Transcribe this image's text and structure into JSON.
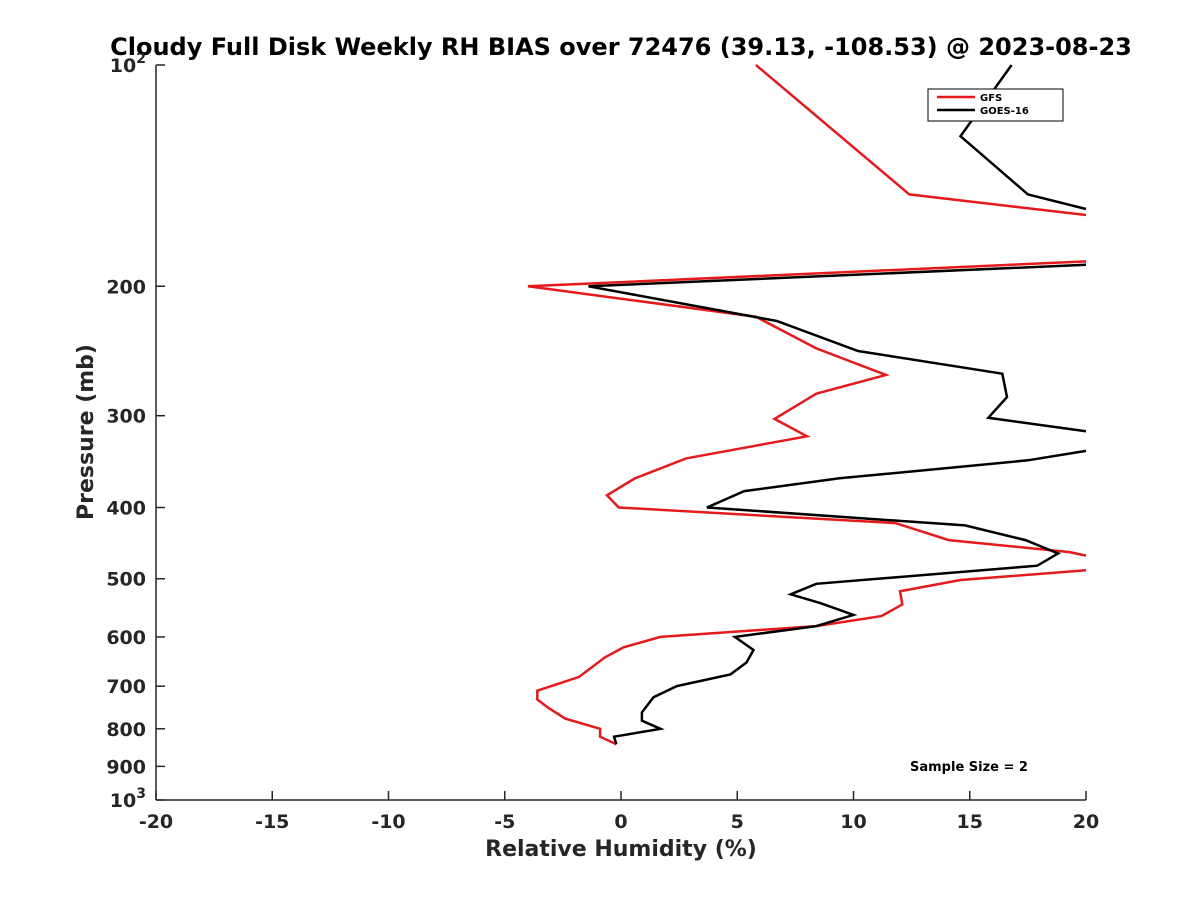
{
  "chart_data": {
    "type": "line",
    "title": "Cloudy Full Disk Weekly RH BIAS over 72476 (39.13, -108.53) @ 2023-08-23",
    "xlabel": "Relative Humidity (%)",
    "ylabel": "Pressure (mb)",
    "xlim": [
      -20,
      20
    ],
    "ylim": [
      100,
      1000
    ],
    "y_scale": "log",
    "y_reversed": true,
    "grid": false,
    "legend_position": "top-right",
    "x_ticks": [
      -20,
      -15,
      -10,
      -5,
      0,
      5,
      10,
      15,
      20
    ],
    "x_tick_labels": [
      "-20",
      "-15",
      "-10",
      "-5",
      "0",
      "5",
      "10",
      "15",
      "20"
    ],
    "y_ticks": [
      100,
      200,
      300,
      400,
      500,
      600,
      700,
      800,
      900,
      1000
    ],
    "y_tick_labels": [
      {
        "base": "10",
        "exp": "2"
      },
      {
        "base": "200",
        "exp": ""
      },
      {
        "base": "300",
        "exp": ""
      },
      {
        "base": "400",
        "exp": ""
      },
      {
        "base": "500",
        "exp": ""
      },
      {
        "base": "600",
        "exp": ""
      },
      {
        "base": "700",
        "exp": ""
      },
      {
        "base": "800",
        "exp": ""
      },
      {
        "base": "900",
        "exp": ""
      },
      {
        "base": "10",
        "exp": "3"
      }
    ],
    "series": [
      {
        "name": "GFS",
        "color": "#e41a1c",
        "points": [
          [
            5.8,
            100
          ],
          [
            12.4,
            150
          ],
          [
            20,
            160
          ],
          [
            null,
            null
          ],
          [
            20,
            185
          ],
          [
            -4.0,
            200
          ],
          [
            5.8,
            220
          ],
          [
            8.4,
            243
          ],
          [
            11.4,
            264
          ],
          [
            8.4,
            280
          ],
          [
            6.6,
            303
          ],
          [
            8.0,
            320
          ],
          [
            2.8,
            343
          ],
          [
            0.6,
            365
          ],
          [
            -0.6,
            385
          ],
          [
            -0.1,
            400
          ],
          [
            11.8,
            420
          ],
          [
            14.1,
            443
          ],
          [
            19.3,
            460
          ],
          [
            20,
            465
          ],
          [
            null,
            null
          ],
          [
            20,
            487
          ],
          [
            14.6,
            502
          ],
          [
            12.0,
            520
          ],
          [
            12.1,
            542
          ],
          [
            11.2,
            562
          ],
          [
            8.4,
            580
          ],
          [
            1.7,
            600
          ],
          [
            0.1,
            620
          ],
          [
            -0.7,
            640
          ],
          [
            -1.8,
            680
          ],
          [
            -3.6,
            710
          ],
          [
            -3.6,
            730
          ],
          [
            -3.1,
            750
          ],
          [
            -2.4,
            775
          ],
          [
            -0.9,
            800
          ],
          [
            -0.9,
            820
          ],
          [
            -0.2,
            840
          ]
        ]
      },
      {
        "name": "GOES-16",
        "color": "#000000",
        "points": [
          [
            16.8,
            100
          ],
          [
            14.6,
            125
          ],
          [
            17.5,
            150
          ],
          [
            20,
            157
          ],
          [
            null,
            null
          ],
          [
            20,
            187
          ],
          [
            -1.4,
            200
          ],
          [
            6.7,
            223
          ],
          [
            10.2,
            245
          ],
          [
            16.4,
            263
          ],
          [
            16.6,
            283
          ],
          [
            15.8,
            302
          ],
          [
            20,
            315
          ],
          [
            null,
            null
          ],
          [
            20,
            335
          ],
          [
            17.5,
            345
          ],
          [
            9.4,
            365
          ],
          [
            5.3,
            380
          ],
          [
            3.7,
            400
          ],
          [
            14.8,
            423
          ],
          [
            17.4,
            443
          ],
          [
            18.8,
            462
          ],
          [
            17.9,
            480
          ],
          [
            8.4,
            508
          ],
          [
            7.3,
            525
          ],
          [
            8.6,
            540
          ],
          [
            10.0,
            560
          ],
          [
            8.4,
            580
          ],
          [
            4.9,
            600
          ],
          [
            5.7,
            625
          ],
          [
            5.4,
            650
          ],
          [
            4.7,
            675
          ],
          [
            2.4,
            700
          ],
          [
            1.4,
            725
          ],
          [
            0.9,
            760
          ],
          [
            0.9,
            780
          ],
          [
            1.7,
            800
          ],
          [
            -0.3,
            820
          ],
          [
            -0.2,
            840
          ]
        ]
      }
    ],
    "annotation": "Sample Size = 2"
  }
}
